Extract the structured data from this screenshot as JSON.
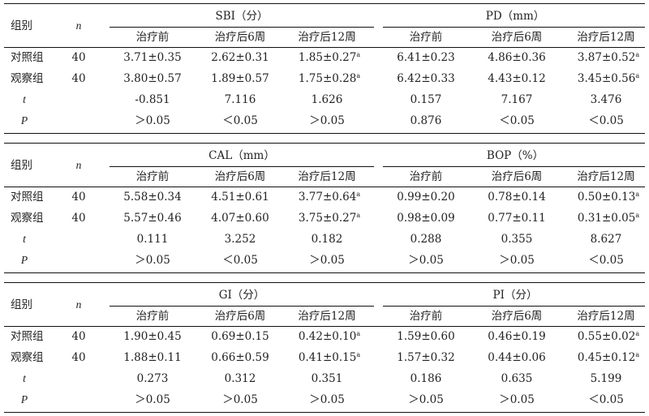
{
  "tables": [
    {
      "groups": [
        "SBI（分）",
        "PD（mm）"
      ],
      "col_label": "组别",
      "n_label": "n",
      "subs": [
        "治疗前",
        "治疗后6周",
        "治疗后12周",
        "治疗前",
        "治疗后6周",
        "治疗后12周"
      ],
      "rows": [
        {
          "label": "对照组",
          "n": "40",
          "cells": [
            "3.71±0.35",
            "2.62±0.31",
            "1.85±0.27",
            "6.41±0.23",
            "4.86±0.36",
            "3.87±0.52"
          ],
          "sups": [
            "",
            "",
            "a",
            "",
            "",
            "a"
          ]
        },
        {
          "label": "观察组",
          "n": "40",
          "cells": [
            "3.80±0.57",
            "1.89±0.57",
            "1.75±0.28",
            "6.42±0.33",
            "4.43±0.12",
            "3.45±0.56"
          ],
          "sups": [
            "",
            "",
            "a",
            "",
            "",
            "a"
          ]
        },
        {
          "label": "t",
          "n": "",
          "cells": [
            "-0.851",
            "7.116",
            "1.626",
            "0.157",
            "7.167",
            "3.476"
          ],
          "sups": [
            "",
            "",
            "",
            "",
            "",
            ""
          ]
        },
        {
          "label": "P",
          "n": "",
          "cells": [
            "＞0.05",
            "＜0.05",
            "＞0.05",
            "0.876",
            "＜0.05",
            "＜0.05"
          ],
          "sups": [
            "",
            "",
            "",
            "",
            "",
            ""
          ]
        }
      ]
    },
    {
      "groups": [
        "CAL（mm）",
        "BOP（%）"
      ],
      "col_label": "组别",
      "n_label": "n",
      "subs": [
        "治疗前",
        "治疗后6周",
        "治疗后12周",
        "治疗前",
        "治疗后6周",
        "治疗后12周"
      ],
      "rows": [
        {
          "label": "对照组",
          "n": "40",
          "cells": [
            "5.58±0.34",
            "4.51±0.61",
            "3.77±0.64",
            "0.99±0.20",
            "0.78±0.14",
            "0.50±0.13"
          ],
          "sups": [
            "",
            "",
            "a",
            "",
            "",
            "a"
          ]
        },
        {
          "label": "观察组",
          "n": "40",
          "cells": [
            "5.57±0.46",
            "4.07±0.60",
            "3.75±0.27",
            "0.98±0.09",
            "0.77±0.11",
            "0.31±0.05"
          ],
          "sups": [
            "",
            "",
            "a",
            "",
            "",
            "a"
          ]
        },
        {
          "label": "t",
          "n": "",
          "cells": [
            "0.111",
            "3.252",
            "0.182",
            "0.288",
            "0.355",
            "8.627"
          ],
          "sups": [
            "",
            "",
            "",
            "",
            "",
            ""
          ]
        },
        {
          "label": "P",
          "n": "",
          "cells": [
            "＞0.05",
            "＜0.05",
            "＞0.05",
            "＞0.05",
            "＞0.05",
            "＜0.05"
          ],
          "sups": [
            "",
            "",
            "",
            "",
            "",
            ""
          ]
        }
      ]
    },
    {
      "groups": [
        "GI（分）",
        "PI（分）"
      ],
      "col_label": "组别",
      "n_label": "n",
      "subs": [
        "治疗前",
        "治疗后6周",
        "治疗后12周",
        "治疗前",
        "治疗后6周",
        "治疗后12周"
      ],
      "rows": [
        {
          "label": "对照组",
          "n": "40",
          "cells": [
            "1.90±0.45",
            "0.69±0.15",
            "0.42±0.10",
            "1.59±0.60",
            "0.46±0.19",
            "0.55±0.02"
          ],
          "sups": [
            "",
            "",
            "a",
            "",
            "",
            "a"
          ]
        },
        {
          "label": "观察组",
          "n": "40",
          "cells": [
            "1.88±0.11",
            "0.66±0.59",
            "0.41±0.15",
            "1.57±0.32",
            "0.44±0.06",
            "0.45±0.12"
          ],
          "sups": [
            "",
            "",
            "a",
            "",
            "",
            "a"
          ]
        },
        {
          "label": "t",
          "n": "",
          "cells": [
            "0.273",
            "0.312",
            "0.351",
            "0.186",
            "0.635",
            "5.199"
          ],
          "sups": [
            "",
            "",
            "",
            "",
            "",
            ""
          ]
        },
        {
          "label": "P",
          "n": "",
          "cells": [
            "＞0.05",
            "＞0.05",
            "＞0.05",
            "＞0.05",
            "＞0.05",
            "＜0.05"
          ],
          "sups": [
            "",
            "",
            "",
            "",
            "",
            ""
          ]
        }
      ]
    }
  ]
}
